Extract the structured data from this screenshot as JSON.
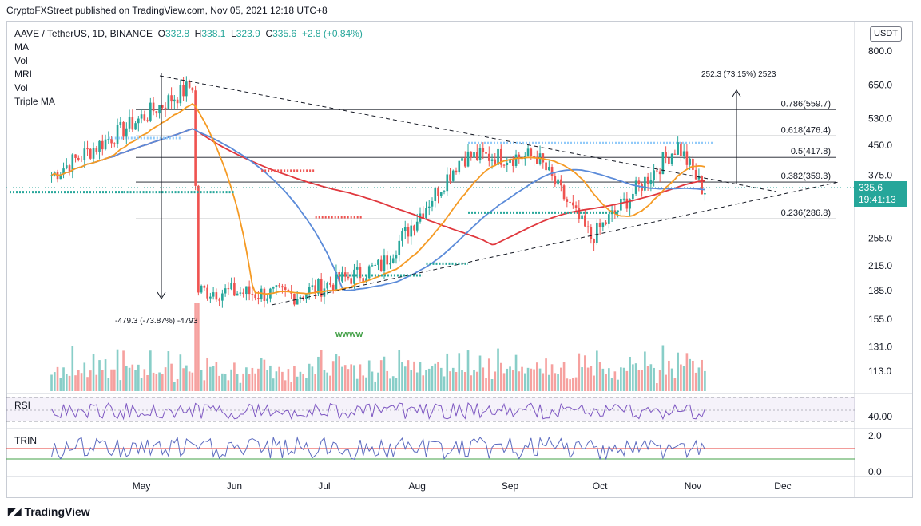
{
  "publish_line": "CryptoFXStreet published on TradingView.com, Nov 05, 2021 12:18 UTC+8",
  "symbol": "AAVE / TetherUS, 1D, BINANCE",
  "ohlc": {
    "o_label": "O",
    "o": "332.8",
    "h_label": "H",
    "h": "338.1",
    "l_label": "L",
    "l": "323.9",
    "c_label": "C",
    "c": "335.6",
    "change": "+2.8 (+0.84%)"
  },
  "indicators": [
    "MA",
    "Vol",
    "MRI",
    "Vol",
    "Triple MA"
  ],
  "currency": "USDT",
  "last_price": "335.6",
  "countdown": "19:41:13",
  "brand": "TradingView",
  "colors": {
    "up": "#26a69a",
    "down": "#ef5350",
    "ma_orange": "#f59a23",
    "ma_blue": "#5b8bd9",
    "ma_red": "#e0383e",
    "rsi": "#7e57c2",
    "trin": "#5c6bc0"
  },
  "chart_data": [
    {
      "type": "line",
      "name": "price",
      "scale": "log",
      "y_ticks": [
        "800.0",
        "650.0",
        "530.0",
        "450.0",
        "375.0",
        "255.0",
        "215.0",
        "185.0",
        "155.0",
        "131.0",
        "113.0"
      ],
      "x_ticks": [
        "May",
        "Jun",
        "Jul",
        "Aug",
        "Sep",
        "Oct",
        "Nov",
        "Dec"
      ],
      "fib_levels": [
        {
          "label": "0.786(559.7)",
          "value": 559.7
        },
        {
          "label": "0.618(476.4)",
          "value": 476.4
        },
        {
          "label": "0.5(417.8)",
          "value": 417.8
        },
        {
          "label": "0.382(359.3)",
          "value": 359.3
        },
        {
          "label": "0.236(286.8)",
          "value": 286.8
        }
      ],
      "annotations": [
        {
          "text": "252.3 (73.15%) 2523"
        },
        {
          "text": "-479.3 (-73.87%) -4793"
        },
        {
          "text": "wwww"
        }
      ],
      "key_points": [
        {
          "date": "2021-04-01",
          "value": 375
        },
        {
          "date": "2021-05-18",
          "value": 650
        },
        {
          "date": "2021-05-20",
          "value": 185
        },
        {
          "date": "2021-06-22",
          "value": 180
        },
        {
          "date": "2021-07-20",
          "value": 215
        },
        {
          "date": "2021-08-16",
          "value": 420
        },
        {
          "date": "2021-09-10",
          "value": 420
        },
        {
          "date": "2021-09-28",
          "value": 255
        },
        {
          "date": "2021-10-27",
          "value": 450
        },
        {
          "date": "2021-11-05",
          "value": 335.6
        }
      ]
    },
    {
      "type": "line",
      "name": "RSI",
      "y_ticks": [
        "40.00"
      ]
    },
    {
      "type": "line",
      "name": "TRIN",
      "y_ticks": [
        "2.0",
        "0.0"
      ]
    }
  ]
}
